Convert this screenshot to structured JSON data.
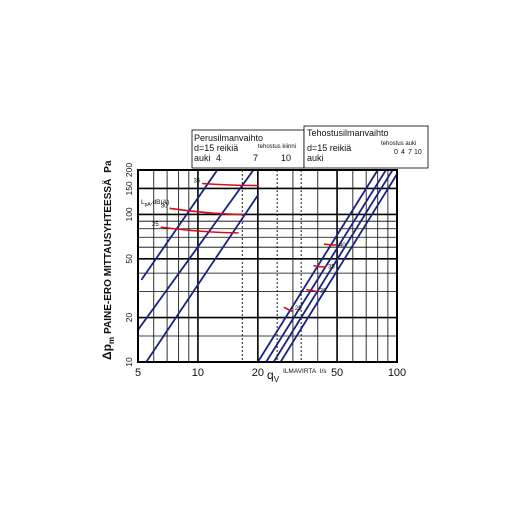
{
  "chart_data": {
    "type": "line",
    "xscale": "log",
    "yscale": "log",
    "xlim": [
      5,
      100
    ],
    "ylim": [
      10,
      200
    ],
    "x_ticks": [
      5,
      10,
      20,
      50,
      100
    ],
    "x_tick_labels": [
      "5",
      "10",
      "20",
      "50",
      "100"
    ],
    "y_ticks": [
      10,
      20,
      50,
      100,
      150,
      200
    ],
    "y_tick_labels": [
      "10",
      "20",
      "50",
      "100",
      "150",
      "200"
    ],
    "xlabel_symbol": "q",
    "xlabel_sub": "V",
    "xlabel_text": "ILMAVIRTA",
    "xlabel_unit": "l/s",
    "ylabel_symbol": "Δp",
    "ylabel_sub": "m",
    "ylabel_text": "PAINE-ERO MITTAUSYHTEESSÄ",
    "ylabel_unit": "Pa",
    "grid": true,
    "noise_label": "L",
    "noise_label_sub": "pA",
    "noise_label_unit": ",dB(A)",
    "boxes": [
      {
        "title": "Perusilmanvaihto",
        "line2": "d=15 reikiä",
        "line3": "auki",
        "extra": "tehostus kiinni",
        "openings": [
          "4",
          "7",
          "10"
        ]
      },
      {
        "title": "Tehostusilmanvaihto",
        "line2": "d=15 reikiä",
        "line3": "auki",
        "extra": "tehostus auki",
        "openings": [
          "0",
          "4",
          "7",
          "10"
        ]
      }
    ],
    "series": [
      {
        "group": "basic",
        "points": [
          [
            5.2,
            36
          ],
          [
            20,
            500
          ]
        ]
      },
      {
        "group": "basic",
        "points": [
          [
            5.0,
            16.5
          ],
          [
            20,
            220
          ]
        ]
      },
      {
        "group": "basic",
        "points": [
          [
            5.5,
            10
          ],
          [
            20,
            135
          ]
        ]
      },
      {
        "group": "boost",
        "points": [
          [
            20,
            10
          ],
          [
            80,
            200
          ]
        ]
      },
      {
        "group": "boost",
        "points": [
          [
            22,
            10
          ],
          [
            88,
            200
          ]
        ]
      },
      {
        "group": "boost",
        "points": [
          [
            24,
            10
          ],
          [
            95,
            200
          ]
        ]
      },
      {
        "group": "boost",
        "points": [
          [
            26,
            10
          ],
          [
            103,
            200
          ]
        ]
      }
    ],
    "dashed_x": [
      16.7,
      25,
      33
    ],
    "sound_curves": [
      {
        "label": "35",
        "points": [
          [
            10.5,
            162
          ],
          [
            15,
            157
          ],
          [
            20,
            157
          ]
        ]
      },
      {
        "label": "30",
        "points": [
          [
            7.2,
            110
          ],
          [
            12,
            100
          ],
          [
            17,
            100
          ]
        ]
      },
      {
        "label": "25",
        "points": [
          [
            6.5,
            82
          ],
          [
            11,
            75
          ],
          [
            16,
            75
          ]
        ]
      },
      {
        "label": "25",
        "points": [
          [
            27,
            23.5
          ],
          [
            28.5,
            22.5
          ],
          [
            30,
            22
          ]
        ]
      },
      {
        "label": "30",
        "points": [
          [
            35,
            31
          ],
          [
            37,
            30.5
          ],
          [
            40,
            30
          ]
        ]
      },
      {
        "label": "35",
        "points": [
          [
            38,
            45
          ],
          [
            41,
            44
          ],
          [
            44,
            44
          ]
        ]
      },
      {
        "label": "40",
        "points": [
          [
            43,
            63
          ],
          [
            47,
            62
          ],
          [
            50,
            62
          ]
        ]
      }
    ],
    "sound_label_colors": "#d0101a",
    "line_color": "#1a237e",
    "grid_color": "#000000"
  }
}
